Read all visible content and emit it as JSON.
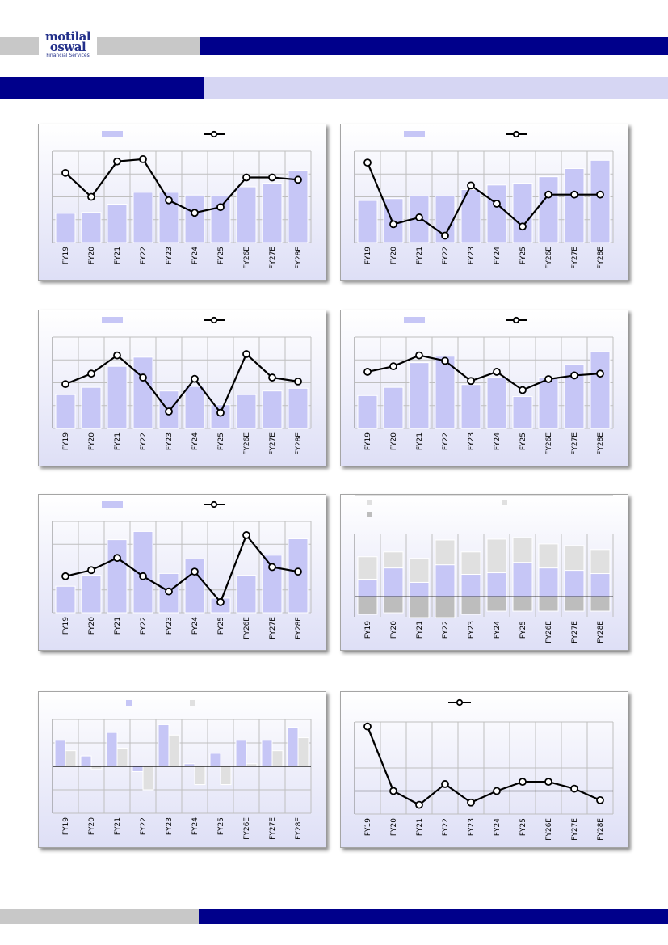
{
  "header": {
    "logo_line1": "motilal",
    "logo_line2": "oswal",
    "logo_line3": "Financial Services"
  },
  "colors": {
    "brand_blue": "#00008b",
    "bar_fill": "#c6c6f6",
    "stack_light": "#e0e0e0",
    "stack_dark": "#bdbdbd",
    "line": "#000000"
  },
  "chart_data": [
    {
      "type": "bar",
      "overlay": "line",
      "categories": [
        "FY19",
        "FY20",
        "FY21",
        "FY22",
        "FY23",
        "FY24",
        "FY25",
        "FY26E",
        "FY27E",
        "FY28E"
      ],
      "series": [
        {
          "kind": "bar",
          "axis": "left",
          "values": [
            32,
            33,
            42,
            55,
            55,
            52,
            51,
            61,
            65,
            79
          ]
        },
        {
          "kind": "line",
          "axis": "right",
          "values": [
            41,
            20,
            51,
            53,
            17,
            6,
            11,
            37,
            37,
            35
          ]
        }
      ],
      "ylim_left": [
        0,
        100
      ],
      "ylim_right": [
        -20,
        60
      ],
      "grid": true,
      "legend": "top"
    },
    {
      "type": "bar",
      "overlay": "line",
      "categories": [
        "FY19",
        "FY20",
        "FY21",
        "FY22",
        "FY23",
        "FY24",
        "FY25",
        "FY26E",
        "FY27E",
        "FY28E"
      ],
      "series": [
        {
          "kind": "bar",
          "axis": "left",
          "values": [
            46,
            48,
            51,
            51,
            58,
            63,
            65,
            72,
            81,
            90
          ]
        },
        {
          "kind": "line",
          "axis": "right",
          "values": [
            30,
            3,
            6,
            -2,
            20,
            12,
            2,
            16,
            16,
            16
          ]
        }
      ],
      "ylim_left": [
        0,
        100
      ],
      "ylim_right": [
        -5,
        35
      ],
      "grid": true,
      "legend": "top"
    },
    {
      "type": "bar",
      "overlay": "line",
      "categories": [
        "FY19",
        "FY20",
        "FY21",
        "FY22",
        "FY23",
        "FY24",
        "FY25",
        "FY26E",
        "FY27E",
        "FY28E"
      ],
      "series": [
        {
          "kind": "bar",
          "axis": "left",
          "values": [
            37,
            45,
            68,
            78,
            41,
            46,
            26,
            37,
            41,
            44
          ]
        },
        {
          "kind": "line",
          "axis": "right",
          "values": [
            24,
            32,
            46,
            29,
            3,
            28,
            2,
            47,
            29,
            26
          ]
        }
      ],
      "ylim_left": [
        0,
        100
      ],
      "ylim_right": [
        -10,
        60
      ],
      "grid": true,
      "legend": "top"
    },
    {
      "type": "bar",
      "overlay": "line",
      "categories": [
        "FY19",
        "FY20",
        "FY21",
        "FY22",
        "FY23",
        "FY24",
        "FY25",
        "FY26E",
        "FY27E",
        "FY28E"
      ],
      "series": [
        {
          "kind": "bar",
          "axis": "left",
          "values": [
            36,
            45,
            72,
            79,
            48,
            56,
            35,
            56,
            70,
            84
          ]
        },
        {
          "kind": "line",
          "axis": "right",
          "values": [
            21,
            24,
            30,
            27,
            16,
            21,
            11,
            17,
            19,
            20
          ]
        }
      ],
      "ylim_left": [
        0,
        100
      ],
      "ylim_right": [
        -10,
        40
      ],
      "grid": true,
      "legend": "top"
    },
    {
      "type": "bar",
      "overlay": "line",
      "categories": [
        "FY19",
        "FY20",
        "FY21",
        "FY22",
        "FY23",
        "FY24",
        "FY25",
        "FY26E",
        "FY27E",
        "FY28E"
      ],
      "series": [
        {
          "kind": "bar",
          "axis": "left",
          "values": [
            29,
            41,
            80,
            89,
            43,
            59,
            16,
            41,
            63,
            81
          ]
        },
        {
          "kind": "line",
          "axis": "right",
          "values": [
            14,
            18,
            26,
            14,
            4,
            17,
            -3,
            41,
            20,
            17
          ]
        }
      ],
      "ylim_left": [
        0,
        100
      ],
      "ylim_right": [
        -10,
        50
      ],
      "grid": true,
      "legend": "top"
    },
    {
      "type": "bar",
      "stacked": true,
      "categories": [
        "FY19",
        "FY20",
        "FY21",
        "FY22",
        "FY23",
        "FY24",
        "FY25",
        "FY26E",
        "FY27E",
        "FY28E"
      ],
      "series": [
        {
          "kind": "bar",
          "values": [
            22,
            36,
            18,
            40,
            28,
            30,
            43,
            36,
            33,
            29
          ]
        },
        {
          "kind": "bar",
          "values": [
            28,
            20,
            30,
            31,
            28,
            42,
            31,
            30,
            31,
            30
          ]
        },
        {
          "kind": "bar",
          "values": [
            -22,
            -20,
            -26,
            -26,
            -22,
            -18,
            -18,
            -18,
            -18,
            -18
          ]
        }
      ],
      "ylim": [
        -25,
        78
      ],
      "grid": true,
      "legend": "top-left"
    },
    {
      "type": "bar",
      "categories": [
        "FY19",
        "FY20",
        "FY21",
        "FY22",
        "FY23",
        "FY24",
        "FY25",
        "FY26E",
        "FY27E",
        "FY28E"
      ],
      "series": [
        {
          "kind": "bar",
          "values": [
            10,
            4,
            13,
            -2,
            16,
            1,
            5,
            10,
            10,
            15
          ]
        },
        {
          "kind": "bar",
          "values": [
            6,
            -1,
            7,
            -9,
            12,
            -7,
            -7,
            1,
            6,
            11
          ]
        }
      ],
      "ylim": [
        -18,
        18
      ],
      "grid": true,
      "legend": "top"
    },
    {
      "type": "line",
      "categories": [
        "FY19",
        "FY20",
        "FY21",
        "FY22",
        "FY23",
        "FY24",
        "FY25",
        "FY26E",
        "FY27E",
        "FY28E"
      ],
      "series": [
        {
          "kind": "line",
          "values": [
            28,
            0,
            -6,
            3,
            -5,
            0,
            4,
            4,
            1,
            -4
          ]
        }
      ],
      "ylim": [
        -10,
        30
      ],
      "grid": true,
      "legend": "top"
    }
  ]
}
